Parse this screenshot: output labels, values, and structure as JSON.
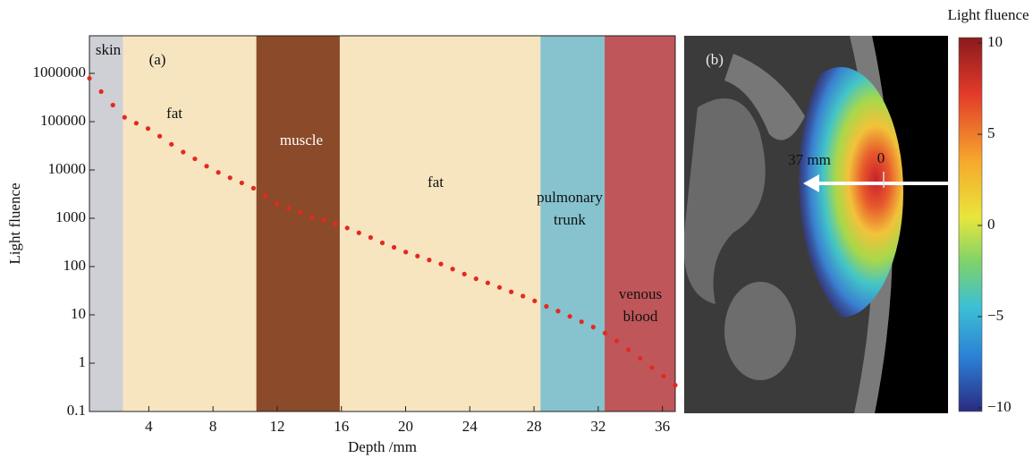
{
  "chart_data": [
    {
      "type": "scatter",
      "panel_label": "(a)",
      "xlabel": "Depth /mm",
      "ylabel": "Light fluence",
      "x": [
        0.3,
        1.03,
        1.76,
        2.49,
        3.22,
        3.95,
        4.68,
        5.41,
        6.14,
        6.87,
        7.6,
        8.33,
        9.06,
        9.79,
        10.52,
        11.25,
        11.98,
        12.71,
        13.44,
        14.17,
        14.9,
        15.63,
        16.36,
        17.09,
        17.82,
        18.55,
        19.28,
        20.01,
        20.74,
        21.47,
        22.2,
        22.93,
        23.66,
        24.39,
        25.12,
        25.85,
        26.58,
        27.31,
        28.04,
        28.77,
        29.5,
        30.23,
        30.96,
        31.69,
        32.42,
        33.15,
        33.88,
        34.61,
        35.34,
        36.07,
        36.8
      ],
      "values": [
        790000,
        420000,
        220000,
        123000,
        93000,
        72000,
        50000,
        34000,
        23500,
        17000,
        12000,
        8900,
        6900,
        5400,
        4200,
        2950,
        2000,
        1620,
        1320,
        1070,
        910,
        770,
        630,
        500,
        400,
        310,
        250,
        200,
        165,
        137,
        113,
        89,
        70,
        56,
        46,
        37,
        30,
        24.5,
        19.5,
        15,
        12,
        9.3,
        7.2,
        5.6,
        4.2,
        2.9,
        1.9,
        1.26,
        0.81,
        0.54,
        0.35
      ],
      "color": "#e4291f",
      "xlim": [
        0.3,
        36.8
      ],
      "ylim": [
        0.1,
        6000000
      ],
      "yscale": "log",
      "xticks": [
        4,
        8,
        12,
        16,
        20,
        24,
        28,
        32,
        36
      ],
      "yticks": [
        0.1,
        1,
        10,
        100,
        1000,
        10000,
        100000,
        1000000
      ],
      "regions": [
        {
          "label": [
            "skin"
          ],
          "start": 0.3,
          "end": 2.4,
          "color": "#cfcfd6",
          "text_color": "#111"
        },
        {
          "label": [
            "fat"
          ],
          "start": 2.4,
          "end": 10.7,
          "color": "#f7e5c0",
          "text_color": "#111"
        },
        {
          "label": [
            "muscle"
          ],
          "start": 10.7,
          "end": 15.9,
          "color": "#8b4a2a",
          "text_color": "#ffffff"
        },
        {
          "label": [
            "fat"
          ],
          "start": 15.9,
          "end": 28.4,
          "color": "#f7e5c0",
          "text_color": "#111"
        },
        {
          "label": [
            "pulmonary",
            "trunk"
          ],
          "start": 28.4,
          "end": 32.4,
          "color": "#86c3cf",
          "text_color": "#111"
        },
        {
          "label": [
            "venous",
            "blood"
          ],
          "start": 32.4,
          "end": 36.8,
          "color": "#bf565a",
          "text_color": "#111"
        }
      ]
    },
    {
      "type": "image",
      "panel_label": "(b)",
      "colorbar_title": "Light fluence",
      "clim": [
        -10.2,
        10.3
      ],
      "cticks": [
        10,
        5,
        0,
        {
          "value": -5,
          "label": "−5"
        },
        {
          "value": -10,
          "label": "−10"
        }
      ],
      "annotations": [
        "37 mm",
        "0"
      ]
    }
  ]
}
